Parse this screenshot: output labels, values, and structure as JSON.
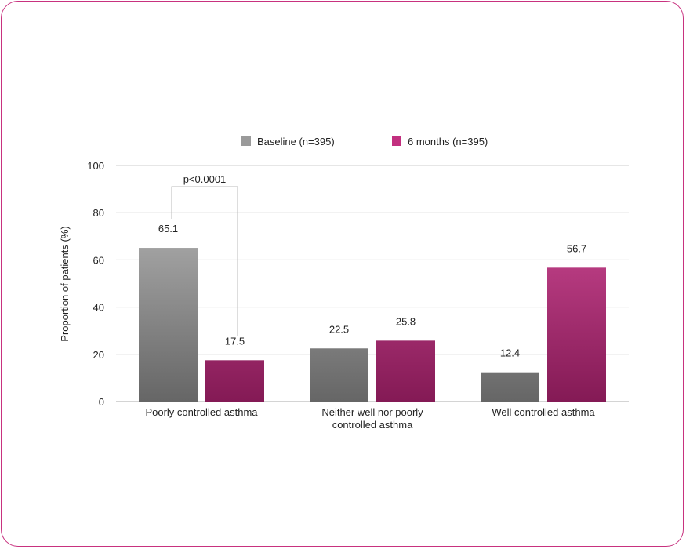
{
  "chart_data": {
    "type": "bar",
    "title": "",
    "xlabel": "",
    "ylabel": "Proportion of patients (%)",
    "ylim": [
      0,
      100
    ],
    "yticks": [
      0,
      20,
      40,
      60,
      80,
      100
    ],
    "grid": true,
    "legend_position": "top",
    "categories": [
      [
        "Poorly controlled asthma"
      ],
      [
        "Neither well nor poorly",
        "controlled asthma"
      ],
      [
        "Well controlled asthma"
      ]
    ],
    "series": [
      {
        "name": "Baseline (n=395)",
        "color": "#9a9a9a",
        "values": [
          65.1,
          22.5,
          12.4
        ],
        "labels": [
          "65.1",
          "22.5",
          "12.4"
        ]
      },
      {
        "name": "6 months (n=395)",
        "color": "#c2307f",
        "values": [
          17.5,
          25.8,
          56.7
        ],
        "labels": [
          "17.5",
          "25.8",
          "56.7"
        ]
      }
    ],
    "annotations": [
      {
        "text": "p<0.0001",
        "category": 0,
        "type": "bracket"
      }
    ]
  },
  "frame_color": "#c8327f"
}
